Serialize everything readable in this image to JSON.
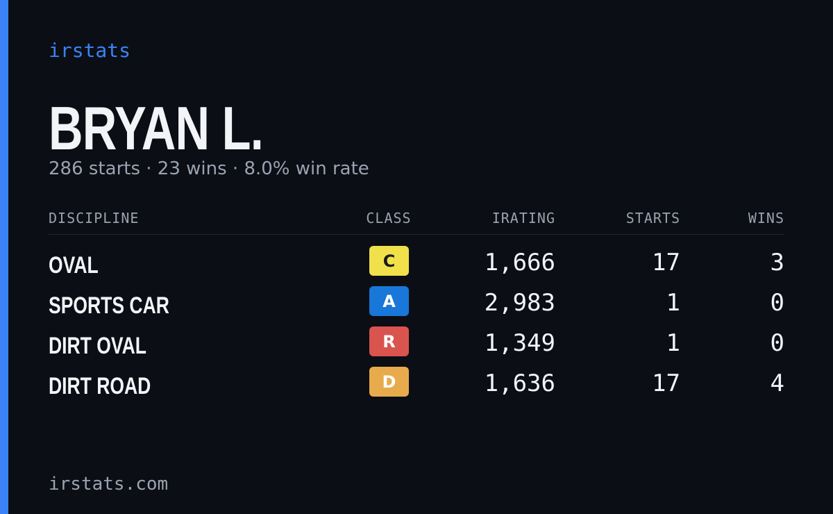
{
  "brand": "irstats",
  "name": "BRYAN L.",
  "summary": "286 starts · 23 wins · 8.0% win rate",
  "table": {
    "headers": [
      "DISCIPLINE",
      "CLASS",
      "IRATING",
      "STARTS",
      "WINS"
    ],
    "rows": [
      {
        "discipline": "OVAL",
        "class": "C",
        "class_color": "#f0e14a",
        "class_text_color": "#1a1a1a",
        "irating": "1,666",
        "starts": 17,
        "wins": 3
      },
      {
        "discipline": "SPORTS CAR",
        "class": "A",
        "class_color": "#1877d8",
        "class_text_color": "#ffffff",
        "irating": "2,983",
        "starts": 1,
        "wins": 0
      },
      {
        "discipline": "DIRT OVAL",
        "class": "R",
        "class_color": "#d9534f",
        "class_text_color": "#ffffff",
        "irating": "1,349",
        "starts": 1,
        "wins": 0
      },
      {
        "discipline": "DIRT ROAD",
        "class": "D",
        "class_color": "#e8ab4c",
        "class_text_color": "#ffffff",
        "irating": "1,636",
        "starts": 17,
        "wins": 4
      }
    ]
  },
  "footer": "irstats.com"
}
